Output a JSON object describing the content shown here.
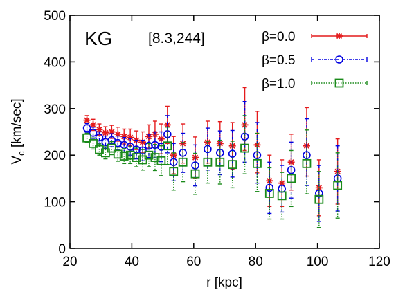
{
  "chart_data": {
    "type": "scatter",
    "panel_label": "KG",
    "panel_params": "[8.3,244]",
    "xlabel": "r [kpc]",
    "ylabel_main": "V",
    "ylabel_sub": "c",
    "ylabel_rest": " [km/sec]",
    "xlim": [
      20,
      120
    ],
    "ylim": [
      0,
      500
    ],
    "x_ticks": [
      "20",
      "40",
      "60",
      "80",
      "100",
      "120"
    ],
    "y_ticks": [
      "0",
      "100",
      "200",
      "300",
      "400",
      "500"
    ],
    "x_tick_values": [
      20,
      40,
      60,
      80,
      100,
      120
    ],
    "y_tick_values": [
      0,
      100,
      200,
      300,
      400,
      500
    ],
    "grid": false,
    "legend_position": "top-right",
    "x": [
      25.5,
      27.5,
      29.5,
      31.5,
      33.5,
      35.5,
      37.5,
      39.5,
      41.5,
      43.5,
      45.5,
      47.5,
      49.5,
      51.5,
      53.5,
      56.5,
      60.5,
      64.5,
      68.5,
      72.5,
      76.5,
      80.5,
      84.5,
      88.5,
      91.5,
      96.5,
      100.5,
      106.5
    ],
    "series": [
      {
        "name": "β=0.0",
        "color": "#e41a1c",
        "marker": "star",
        "values": [
          275,
          265,
          255,
          248,
          250,
          245,
          240,
          238,
          232,
          228,
          240,
          245,
          235,
          265,
          200,
          225,
          195,
          228,
          225,
          220,
          265,
          222,
          145,
          140,
          185,
          220,
          130,
          165
        ],
        "err_low": [
          10,
          12,
          12,
          13,
          14,
          15,
          16,
          18,
          20,
          22,
          25,
          28,
          32,
          40,
          40,
          42,
          44,
          45,
          47,
          50,
          55,
          60,
          55,
          50,
          60,
          65,
          60,
          70
        ],
        "err_high": [
          10,
          12,
          12,
          13,
          14,
          15,
          16,
          18,
          20,
          22,
          25,
          28,
          32,
          40,
          40,
          42,
          44,
          45,
          47,
          50,
          80,
          72,
          55,
          50,
          60,
          82,
          60,
          70
        ]
      },
      {
        "name": "β=0.5",
        "color": "#0000e0",
        "marker": "circle",
        "values": [
          258,
          248,
          238,
          228,
          232,
          226,
          222,
          218,
          212,
          210,
          220,
          222,
          218,
          245,
          185,
          205,
          178,
          213,
          205,
          203,
          240,
          200,
          130,
          128,
          168,
          200,
          118,
          150
        ],
        "err_low": [
          10,
          12,
          12,
          13,
          14,
          15,
          16,
          18,
          20,
          22,
          25,
          28,
          32,
          40,
          40,
          42,
          44,
          45,
          47,
          50,
          55,
          60,
          55,
          50,
          60,
          65,
          60,
          70
        ],
        "err_high": [
          10,
          12,
          12,
          13,
          14,
          15,
          16,
          18,
          20,
          22,
          25,
          28,
          32,
          40,
          40,
          42,
          44,
          45,
          47,
          50,
          75,
          70,
          55,
          50,
          60,
          78,
          60,
          70
        ]
      },
      {
        "name": "β=1.0",
        "color": "#1a8a1a",
        "marker": "square",
        "values": [
          237,
          225,
          212,
          205,
          215,
          202,
          198,
          200,
          195,
          190,
          200,
          195,
          188,
          220,
          165,
          185,
          160,
          185,
          185,
          180,
          215,
          182,
          118,
          113,
          150,
          182,
          105,
          135
        ],
        "err_low": [
          10,
          12,
          12,
          13,
          14,
          15,
          16,
          18,
          20,
          22,
          25,
          28,
          32,
          40,
          40,
          42,
          44,
          45,
          47,
          50,
          55,
          60,
          55,
          50,
          60,
          65,
          60,
          70
        ],
        "err_high": [
          10,
          12,
          12,
          13,
          14,
          15,
          16,
          18,
          20,
          22,
          25,
          28,
          32,
          40,
          40,
          42,
          44,
          45,
          47,
          50,
          70,
          65,
          55,
          50,
          60,
          72,
          60,
          70
        ]
      }
    ]
  }
}
